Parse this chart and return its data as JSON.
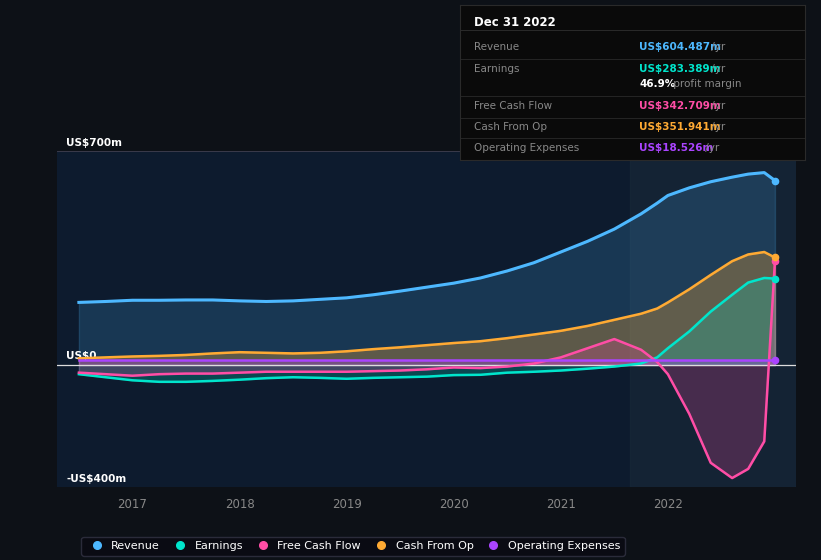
{
  "background_color": "#0d1117",
  "plot_bg_color": "#0d1b2e",
  "ylim": [
    -400,
    700
  ],
  "yticks": [
    -400,
    0,
    700
  ],
  "ytick_labels": [
    "-US$400m",
    "US$0",
    "US$700m"
  ],
  "xlim_start": 2016.3,
  "xlim_end": 2023.2,
  "xtick_positions": [
    2017,
    2018,
    2019,
    2020,
    2021,
    2022
  ],
  "colors": {
    "revenue": "#4db8ff",
    "earnings": "#00e5cc",
    "free_cash_flow": "#ff4da6",
    "cash_from_op": "#ffaa33",
    "operating_expenses": "#aa44ff"
  },
  "legend_labels": [
    "Revenue",
    "Earnings",
    "Free Cash Flow",
    "Cash From Op",
    "Operating Expenses"
  ],
  "info_box": {
    "title": "Dec 31 2022",
    "rows": [
      {
        "label": "Revenue",
        "value": "US$604.487m",
        "color": "#4db8ff"
      },
      {
        "label": "Earnings",
        "value": "US$283.389m",
        "color": "#00e5cc"
      },
      {
        "label": "",
        "value": "46.9% profit margin",
        "color": "#ffffff"
      },
      {
        "label": "Free Cash Flow",
        "value": "US$342.709m",
        "color": "#ff4da6"
      },
      {
        "label": "Cash From Op",
        "value": "US$351.941m",
        "color": "#ffaa33"
      },
      {
        "label": "Operating Expenses",
        "value": "US$18.526m",
        "color": "#aa44ff"
      }
    ]
  },
  "series": {
    "x": [
      2016.5,
      2016.75,
      2017.0,
      2017.25,
      2017.5,
      2017.75,
      2018.0,
      2018.25,
      2018.5,
      2018.75,
      2019.0,
      2019.25,
      2019.5,
      2019.75,
      2020.0,
      2020.25,
      2020.5,
      2020.75,
      2021.0,
      2021.25,
      2021.5,
      2021.75,
      2021.9,
      2022.0,
      2022.2,
      2022.4,
      2022.6,
      2022.75,
      2022.9,
      2023.0
    ],
    "revenue": [
      205,
      208,
      212,
      212,
      213,
      213,
      210,
      208,
      210,
      215,
      220,
      230,
      242,
      255,
      268,
      285,
      308,
      335,
      370,
      405,
      445,
      495,
      530,
      555,
      580,
      600,
      615,
      625,
      630,
      604
    ],
    "earnings": [
      -30,
      -40,
      -50,
      -55,
      -55,
      -52,
      -48,
      -43,
      -40,
      -42,
      -45,
      -42,
      -40,
      -38,
      -33,
      -32,
      -25,
      -22,
      -18,
      -12,
      -5,
      5,
      25,
      55,
      110,
      175,
      230,
      270,
      285,
      283
    ],
    "free_cash_flow": [
      -25,
      -30,
      -35,
      -30,
      -28,
      -28,
      -25,
      -22,
      -22,
      -22,
      -22,
      -20,
      -18,
      -14,
      -8,
      -10,
      -5,
      5,
      25,
      55,
      85,
      50,
      10,
      -30,
      -160,
      -320,
      -370,
      -340,
      -250,
      342
    ],
    "cash_from_op": [
      22,
      25,
      28,
      30,
      33,
      38,
      42,
      40,
      38,
      40,
      45,
      52,
      58,
      65,
      72,
      78,
      88,
      100,
      112,
      128,
      148,
      168,
      185,
      205,
      248,
      295,
      340,
      362,
      370,
      352
    ],
    "operating_expenses": [
      18,
      18,
      18,
      18,
      18,
      18,
      18,
      18,
      18,
      18,
      18,
      18,
      18,
      18,
      18,
      18,
      18,
      18,
      18,
      18,
      18,
      18,
      18,
      18,
      18,
      18,
      18,
      18,
      18,
      18
    ]
  }
}
